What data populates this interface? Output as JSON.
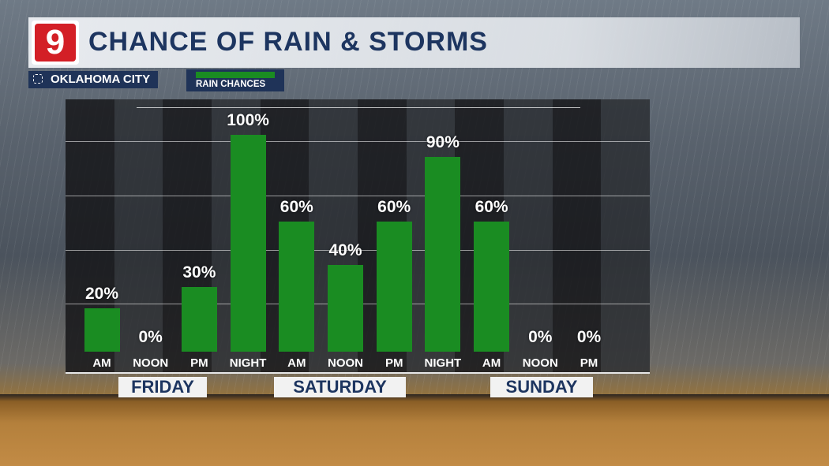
{
  "header": {
    "logo_text": "9",
    "title": "CHANCE OF RAIN & STORMS"
  },
  "location": {
    "label": "OKLAHOMA CITY",
    "icon": "location-target-icon"
  },
  "legend": {
    "label": "RAIN CHANCES",
    "color": "#1a8c22"
  },
  "days": [
    "FRIDAY",
    "SATURDAY",
    "SUNDAY"
  ],
  "chart_data": {
    "type": "bar",
    "categories": [
      "AM",
      "NOON",
      "PM",
      "NIGHT",
      "AM",
      "NOON",
      "PM",
      "NIGHT",
      "AM",
      "NOON",
      "PM"
    ],
    "series": [
      {
        "name": "RAIN CHANCES",
        "values": [
          20,
          0,
          30,
          100,
          60,
          40,
          60,
          90,
          60,
          0,
          0
        ]
      }
    ],
    "labels": [
      "20%",
      "0%",
      "30%",
      "100%",
      "60%",
      "40%",
      "60%",
      "90%",
      "60%",
      "0%",
      "0%"
    ],
    "groups": [
      {
        "label": "FRIDAY",
        "categories": [
          0,
          1,
          2
        ]
      },
      {
        "label": "SATURDAY",
        "categories": [
          3,
          4,
          5,
          6
        ]
      },
      {
        "label": "SUNDAY",
        "categories": [
          7,
          8,
          9,
          10
        ]
      }
    ],
    "title": "CHANCE OF RAIN & STORMS",
    "ylim": [
      0,
      100
    ],
    "unit": "%",
    "grid": true,
    "bar_color": "#1a8c22"
  }
}
